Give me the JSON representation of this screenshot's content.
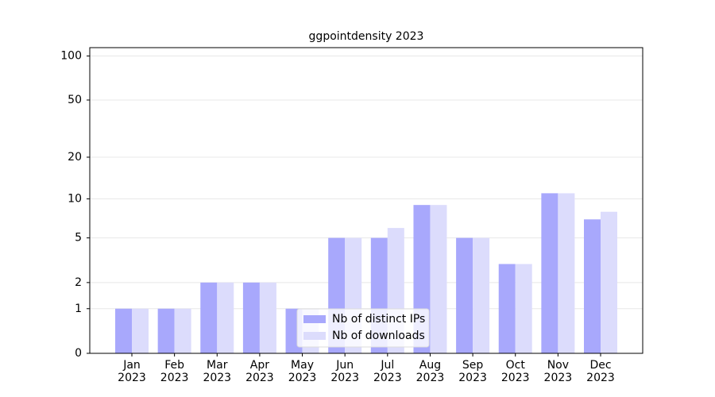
{
  "chart_data": {
    "type": "bar",
    "title": "ggpointdensity 2023",
    "categories": [
      "Jan 2023",
      "Feb 2023",
      "Mar 2023",
      "Apr 2023",
      "May 2023",
      "Jun 2023",
      "Jul 2023",
      "Aug 2023",
      "Sep 2023",
      "Oct 2023",
      "Nov 2023",
      "Dec 2023"
    ],
    "series": [
      {
        "name": "Nb of distinct IPs",
        "color": "#a8a8fc",
        "values": [
          1,
          1,
          2,
          2,
          1,
          5,
          5,
          9,
          5,
          3,
          11,
          7
        ]
      },
      {
        "name": "Nb of downloads",
        "color": "#dcdcfc",
        "values": [
          1,
          1,
          2,
          2,
          1,
          5,
          6,
          9,
          5,
          3,
          11,
          8
        ]
      }
    ],
    "yscale": "log1p",
    "ylim": [
      0,
      114
    ],
    "yticks": [
      0,
      1,
      2,
      5,
      10,
      20,
      50,
      100
    ],
    "grid": true,
    "legend": "lower center"
  }
}
